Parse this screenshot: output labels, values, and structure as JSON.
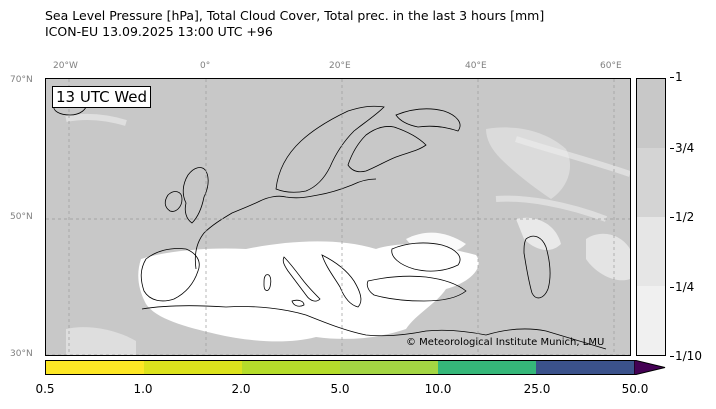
{
  "header": {
    "line1": "Sea Level Pressure [hPa], Total Cloud Cover, Total prec. in the last 3 hours [mm]",
    "line2": "ICON-EU 13.09.2025 13:00 UTC +96"
  },
  "map": {
    "time_label": "13 UTC Wed",
    "copyright": "© Meteorological Institute Munich, LMU",
    "lon_labels": [
      "20°W",
      "0°",
      "20°E",
      "40°E",
      "60°E"
    ],
    "lat_labels": [
      "70°N",
      "50°N",
      "30°N"
    ],
    "colors": {
      "cloud_cover": "#c8c8c8",
      "clear": "#ffffff",
      "gridline": "#999999",
      "coastline": "#000000"
    }
  },
  "cloud_colorbar": {
    "ticks": [
      "1",
      "3/4",
      "1/2",
      "1/4",
      "1/10"
    ],
    "colors": [
      "#c8c8c8",
      "#d4d4d4",
      "#e6e6e6",
      "#f0f0f0"
    ]
  },
  "precip_colorbar": {
    "ticks": [
      "0.5",
      "1.0",
      "2.0",
      "5.0",
      "10.0",
      "25.0",
      "50.0"
    ],
    "colors": [
      "#fde725",
      "#dce31d",
      "#b5dd2b",
      "#a4d643",
      "#35b779",
      "#3b528b",
      "#440154"
    ]
  }
}
